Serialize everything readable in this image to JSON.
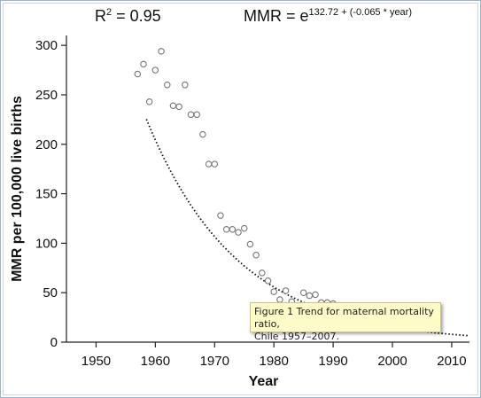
{
  "header": {
    "r2_prefix": "R",
    "r2_sup": "2",
    "r2_value": " = 0.95",
    "eq_prefix": "MMR = e",
    "eq_exponent": "132.72 + (-0.065 * year)"
  },
  "caption": {
    "line1": "Figure 1 Trend for maternal mortality ratio,",
    "line2": "Chile 1957–2007."
  },
  "chart_data": {
    "type": "scatter",
    "xlabel": "Year",
    "ylabel": "MMR per 100,000 live births",
    "xlim": [
      1945,
      2013
    ],
    "ylim": [
      0,
      310
    ],
    "xticks": [
      1950,
      1960,
      1970,
      1980,
      1990,
      2000,
      2010
    ],
    "yticks": [
      0,
      50,
      100,
      150,
      200,
      250,
      300
    ],
    "marker_color": "#777777",
    "trend_color": "#111111",
    "points": [
      {
        "x": 1957,
        "y": 271
      },
      {
        "x": 1958,
        "y": 281
      },
      {
        "x": 1959,
        "y": 243
      },
      {
        "x": 1960,
        "y": 275
      },
      {
        "x": 1961,
        "y": 294
      },
      {
        "x": 1962,
        "y": 260
      },
      {
        "x": 1963,
        "y": 239
      },
      {
        "x": 1964,
        "y": 238
      },
      {
        "x": 1965,
        "y": 260
      },
      {
        "x": 1966,
        "y": 230
      },
      {
        "x": 1967,
        "y": 230
      },
      {
        "x": 1968,
        "y": 210
      },
      {
        "x": 1969,
        "y": 180
      },
      {
        "x": 1970,
        "y": 180
      },
      {
        "x": 1971,
        "y": 128
      },
      {
        "x": 1972,
        "y": 114
      },
      {
        "x": 1973,
        "y": 114
      },
      {
        "x": 1974,
        "y": 111
      },
      {
        "x": 1975,
        "y": 115
      },
      {
        "x": 1976,
        "y": 99
      },
      {
        "x": 1977,
        "y": 88
      },
      {
        "x": 1978,
        "y": 70
      },
      {
        "x": 1979,
        "y": 62
      },
      {
        "x": 1980,
        "y": 51
      },
      {
        "x": 1981,
        "y": 43
      },
      {
        "x": 1982,
        "y": 52
      },
      {
        "x": 1983,
        "y": 41
      },
      {
        "x": 1985,
        "y": 50
      },
      {
        "x": 1986,
        "y": 47
      },
      {
        "x": 1987,
        "y": 48
      },
      {
        "x": 1988,
        "y": 40
      },
      {
        "x": 1989,
        "y": 40
      },
      {
        "x": 1990,
        "y": 39
      }
    ],
    "trend": {
      "intercept": 132.72,
      "slope": -0.065,
      "x_start": 1958.5,
      "x_end": 2013
    }
  }
}
